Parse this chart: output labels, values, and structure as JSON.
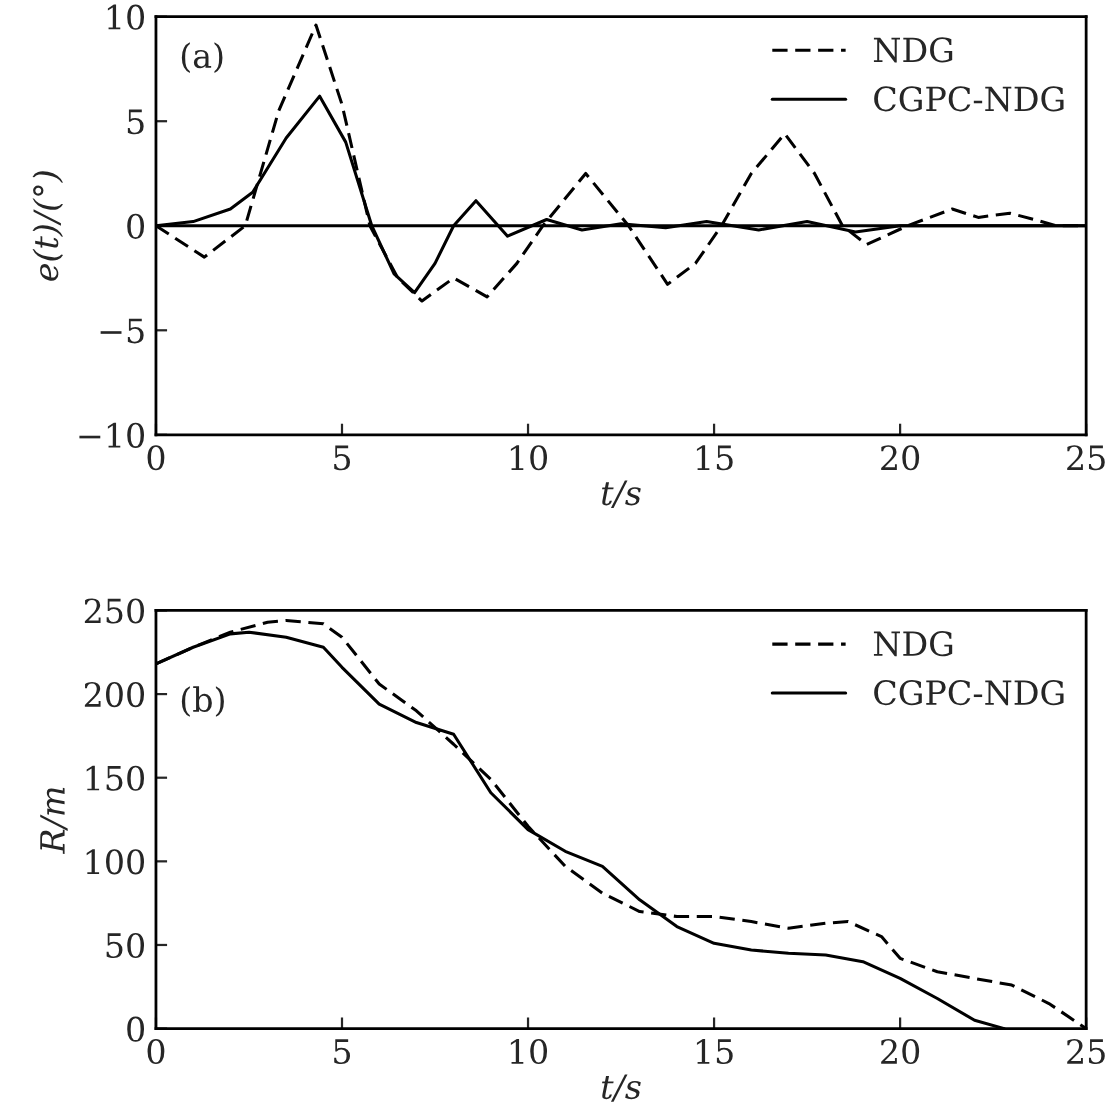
{
  "chart_data": [
    {
      "type": "line",
      "xlabel": "t/s",
      "ylabel": "e(t)/(°)",
      "annotations": [
        "(a)"
      ],
      "xlim": [
        0,
        25
      ],
      "xticks": [
        0,
        5,
        10,
        15,
        20,
        25
      ],
      "ylim": [
        -10,
        10
      ],
      "yticks": [
        {
          "value": -10,
          "label": "−10"
        },
        {
          "value": -5,
          "label": "−5"
        },
        0,
        5,
        10
      ],
      "legend": "top right",
      "grid": false,
      "ref_lines": [
        {
          "axis": "y",
          "value": 0,
          "color": "#000000",
          "line_style": "solid"
        }
      ],
      "series": [
        {
          "name": "NDG",
          "color": "#000000",
          "line_style": "dashed",
          "x": [
            0,
            1.3,
            2.4,
            3.3,
            4.3,
            5,
            5.75,
            6.5,
            7.15,
            8.0,
            8.9,
            9.7,
            10.4,
            11.55,
            12.7,
            13.75,
            14.5,
            15.2,
            16.0,
            16.9,
            17.7,
            18.45,
            19.1,
            20.2,
            21.4,
            22.1,
            22.95,
            23.6,
            24.2,
            25
          ],
          "values": [
            0,
            -1.5,
            0,
            5.5,
            9.6,
            5.8,
            0,
            -2.5,
            -3.6,
            -2.5,
            -3.4,
            -1.8,
            0,
            2.5,
            0,
            -2.8,
            -1.8,
            0,
            2.5,
            4.4,
            2.5,
            0,
            -0.9,
            0,
            0.8,
            0.4,
            0.6,
            0.3,
            0,
            0
          ]
        },
        {
          "name": "CGPC-NDG",
          "color": "#000000",
          "line_style": "solid",
          "x": [
            0,
            1,
            2,
            2.6,
            3.5,
            4.4,
            5.1,
            5.8,
            6.4,
            6.95,
            7.5,
            8.0,
            8.6,
            9.45,
            10.5,
            11.45,
            12.5,
            13.7,
            14.8,
            16.2,
            17.5,
            18.8,
            20,
            21,
            25
          ],
          "values": [
            0,
            0.2,
            0.8,
            1.6,
            4.2,
            6.2,
            4.0,
            0,
            -2.3,
            -3.2,
            -1.8,
            0,
            1.2,
            -0.5,
            0.3,
            -0.2,
            0.1,
            -0.1,
            0.2,
            -0.2,
            0.2,
            -0.3,
            0,
            0,
            0
          ]
        }
      ]
    },
    {
      "type": "line",
      "xlabel": "t/s",
      "ylabel": "R/m",
      "annotations": [
        "(b)"
      ],
      "xlim": [
        0,
        25
      ],
      "xticks": [
        0,
        5,
        10,
        15,
        20,
        25
      ],
      "ylim": [
        0,
        250
      ],
      "yticks": [
        0,
        50,
        100,
        150,
        200,
        250
      ],
      "legend": "top right",
      "grid": false,
      "series": [
        {
          "name": "NDG",
          "color": "#000000",
          "line_style": "dashed",
          "x": [
            0,
            1,
            2,
            3,
            3.5,
            4.5,
            5,
            6,
            7,
            8,
            9,
            10,
            11,
            12,
            13,
            14,
            15,
            16,
            17,
            18,
            18.6,
            19.5,
            20,
            21,
            22,
            23,
            24,
            25
          ],
          "values": [
            218,
            228,
            237,
            243,
            244,
            242,
            234,
            206,
            190,
            170,
            149,
            121,
            97,
            81,
            70,
            67,
            67,
            64,
            60,
            63,
            64,
            55,
            42,
            34,
            30,
            26,
            15,
            0
          ]
        },
        {
          "name": "CGPC-NDG",
          "color": "#000000",
          "line_style": "solid",
          "x": [
            0,
            1,
            2,
            2.5,
            3.5,
            4.5,
            5,
            6,
            7,
            8,
            9,
            10,
            11,
            12,
            13,
            14,
            15,
            16,
            17,
            18,
            19,
            20,
            21,
            22,
            22.8
          ],
          "values": [
            218,
            228,
            236,
            237,
            234,
            228,
            216,
            194,
            183,
            176,
            141,
            119,
            106,
            97,
            77,
            61,
            51,
            47,
            45,
            44,
            40,
            30,
            18,
            5,
            0
          ]
        }
      ]
    }
  ]
}
